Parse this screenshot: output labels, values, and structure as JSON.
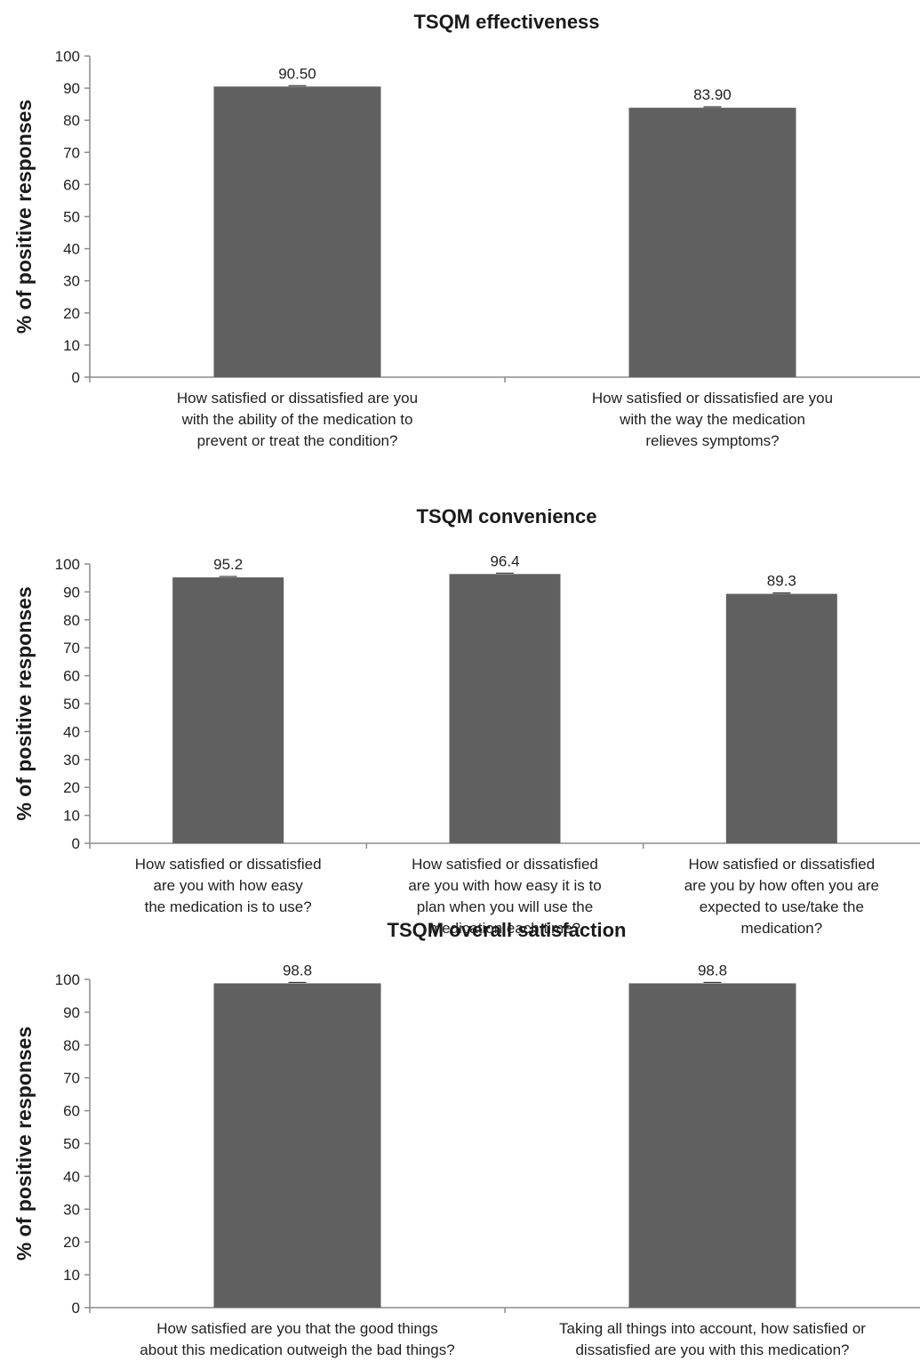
{
  "colors": {
    "bar": "#606060",
    "axis": "#8c8c8c"
  },
  "chart_data": [
    {
      "type": "bar",
      "title": "TSQM effectiveness",
      "ylabel": "% of positive responses",
      "xlabel": "",
      "ylim": [
        0,
        100
      ],
      "yticks": [
        "0",
        "10",
        "20",
        "30",
        "40",
        "50",
        "60",
        "70",
        "80",
        "90",
        "100"
      ],
      "categories": [
        "How satisfied or dissatisfied are you\nwith the ability of the medication to\nprevent or treat the condition?",
        "How satisfied or dissatisfied are you\nwith the way the medication\nrelieves symptoms?"
      ],
      "values": [
        90.5,
        83.9
      ],
      "value_labels": [
        "90.50",
        "83.90"
      ],
      "grid": false,
      "legend": "none"
    },
    {
      "type": "bar",
      "title": "TSQM convenience",
      "ylabel": "% of positive responses",
      "xlabel": "",
      "ylim": [
        0,
        100
      ],
      "yticks": [
        "0",
        "10",
        "20",
        "30",
        "40",
        "50",
        "60",
        "70",
        "80",
        "90",
        "100"
      ],
      "categories": [
        "How satisfied or dissatisfied\nare you with how easy\nthe medication is to use?",
        "How satisfied or dissatisfied\nare you with how easy it is to\nplan when you will use the\nmedication each time?",
        "How satisfied or dissatisfied\nare you by how often you are\nexpected to use/take the\nmedication?"
      ],
      "values": [
        95.2,
        96.4,
        89.3
      ],
      "value_labels": [
        "95.2",
        "96.4",
        "89.3"
      ],
      "grid": false,
      "legend": "none"
    },
    {
      "type": "bar",
      "title": "TSQM overall satisfaction",
      "ylabel": "% of positive responses",
      "xlabel": "",
      "ylim": [
        0,
        100
      ],
      "yticks": [
        "0",
        "10",
        "20",
        "30",
        "40",
        "50",
        "60",
        "70",
        "80",
        "90",
        "100"
      ],
      "categories": [
        "How satisfied are you that the good things\nabout this medication outweigh the bad things?",
        "Taking all things into account, how satisfied or\ndissatisfied are you with this medication?"
      ],
      "values": [
        98.8,
        98.8
      ],
      "value_labels": [
        "98.8",
        "98.8"
      ],
      "grid": false,
      "legend": "none"
    }
  ]
}
